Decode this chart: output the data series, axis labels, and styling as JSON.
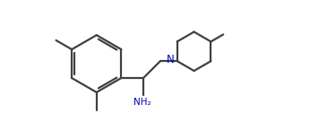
{
  "background_color": "#ffffff",
  "line_color": "#404040",
  "text_color": "#000000",
  "N_color": "#0000bb",
  "NH2_color": "#0000bb",
  "line_width": 1.6,
  "figsize": [
    3.46,
    1.45
  ],
  "dpi": 100
}
